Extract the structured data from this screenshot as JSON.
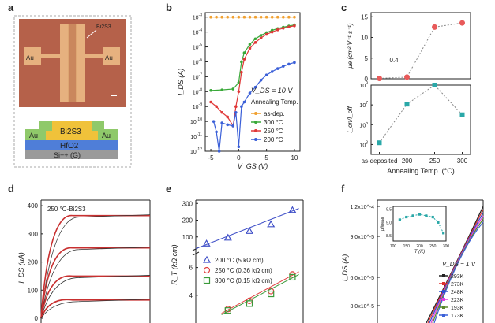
{
  "panels": {
    "a": {
      "label": "a",
      "device_labels": {
        "material": "Bi2S3",
        "au_left": "Au",
        "au_right": "Au"
      },
      "stack": {
        "au_l": "Au",
        "au_r": "Au",
        "channel": "Bi2S3",
        "dielectric": "HfO2",
        "substrate": "Si++ (G)"
      },
      "colors": {
        "device_bg": "#b5614a",
        "pad": "#e6b17f",
        "green": "#8fc96a",
        "yellow": "#f0c23a",
        "blue": "#4f7ed8",
        "gray": "#9a9a9a"
      }
    },
    "b": {
      "label": "b",
      "annotation": "V_DS = 10 V",
      "legend_title": "Annealing Temp."
    },
    "c": {
      "label": "c",
      "note": "0.4"
    },
    "d": {
      "label": "d",
      "annotation": "250 °C-Bi2S3"
    },
    "e": {
      "label": "e"
    },
    "f": {
      "label": "f",
      "annotation": "V_DS = 1 V"
    }
  },
  "chart_data": [
    {
      "id": "b",
      "type": "line",
      "xlabel": "V_GS (V)",
      "ylabel": "I_DS (A)",
      "yscale": "log",
      "xlim": [
        -6,
        11
      ],
      "ylim": [
        1e-12,
        0.002
      ],
      "xticks": [
        "-5",
        "0",
        "5",
        "10"
      ],
      "yticks": [
        "10^-12",
        "10^-11",
        "10^-10",
        "10^-9",
        "10^-8",
        "10^-7",
        "10^-6",
        "10^-5",
        "10^-4",
        "10^-3"
      ],
      "series": [
        {
          "name": "as-dep.",
          "color": "#f0a030",
          "x": [
            -5,
            -4,
            -3,
            -2,
            -1,
            0,
            1,
            2,
            3,
            4,
            5,
            6,
            7,
            8,
            9,
            10
          ],
          "y": [
            0.001,
            0.001,
            0.001,
            0.001,
            0.001,
            0.001,
            0.001,
            0.001,
            0.001,
            0.001,
            0.001,
            0.001,
            0.001,
            0.001,
            0.001,
            0.001
          ]
        },
        {
          "name": "300 °C",
          "color": "#38a838",
          "x": [
            -5,
            -3,
            -1,
            0,
            0.5,
            1,
            2,
            3,
            4,
            5,
            6,
            7,
            8,
            9,
            10
          ],
          "y": [
            1.2e-08,
            1.3e-08,
            1.5e-08,
            4e-08,
            1e-06,
            4e-06,
            1.5e-05,
            3.5e-05,
            6e-05,
            9e-05,
            0.00013,
            0.00017,
            0.00021,
            0.00025,
            0.0003
          ]
        },
        {
          "name": "250 °C",
          "color": "#e03838",
          "x": [
            -5,
            -4,
            -3,
            -2,
            -1,
            -0.5,
            0,
            0.5,
            1,
            2,
            3,
            4,
            5,
            6,
            7,
            8,
            9,
            10
          ],
          "y": [
            2e-09,
            1e-09,
            4e-10,
            2e-10,
            5e-11,
            1e-09,
            1e-08,
            2e-07,
            1.5e-06,
            8e-06,
            2e-05,
            4e-05,
            7e-05,
            0.0001,
            0.00014,
            0.00018,
            0.00022,
            0.00026
          ]
        },
        {
          "name": "200 °C",
          "color": "#3a5fd8",
          "x": [
            -4.5,
            -4,
            -3.5,
            -3,
            -2,
            -1,
            -0.5,
            0,
            0.5,
            1,
            2,
            3,
            4,
            5,
            6,
            7,
            8,
            9,
            10
          ],
          "y": [
            1e-10,
            2e-11,
            1e-12,
            8e-11,
            6e-11,
            5e-11,
            4e-10,
            2e-12,
            1e-09,
            2e-09,
            8e-09,
            2e-08,
            6e-08,
            1.3e-07,
            2.2e-07,
            3.5e-07,
            5e-07,
            7e-07,
            9e-07
          ]
        }
      ]
    },
    {
      "id": "c-top",
      "type": "scatter",
      "xlabel": "",
      "ylabel": "μe (cm² V⁻¹ s⁻¹)",
      "categories": [
        "as-deposited",
        "200",
        "250",
        "300"
      ],
      "ylim": [
        0,
        16
      ],
      "yticks": [
        "0",
        "5",
        "10",
        "15"
      ],
      "series": [
        {
          "name": "mobility",
          "color": "#e85a5a",
          "values": [
            0.1,
            0.4,
            12.5,
            13.5
          ]
        }
      ]
    },
    {
      "id": "c-bottom",
      "type": "scatter",
      "xlabel": "Annealing Temp. (°C)",
      "ylabel": "I_on/I_off",
      "yscale": "log",
      "categories": [
        "as-deposited",
        "200",
        "250",
        "300"
      ],
      "ylim": [
        100.0,
        1000000000.0
      ],
      "yticks": [
        "10^3",
        "10^5",
        "10^7",
        "10^9"
      ],
      "series": [
        {
          "name": "on/off ratio",
          "color": "#2aa8a8",
          "values": [
            1500.0,
            12000000.0,
            1000000000.0,
            1000000.0
          ]
        }
      ]
    },
    {
      "id": "d",
      "type": "line",
      "ylabel": "I_DS (uA)",
      "ylim": [
        0,
        420
      ],
      "yticks": [
        "0",
        "100",
        "200",
        "300",
        "400"
      ],
      "series": [
        {
          "name": "",
          "color": "#c83030",
          "values": [
            365
          ]
        },
        {
          "name": "",
          "color": "#c83030",
          "values": [
            250
          ]
        },
        {
          "name": "",
          "color": "#c83030",
          "values": [
            150
          ]
        },
        {
          "name": "",
          "color": "#c83030",
          "values": [
            65
          ]
        }
      ]
    },
    {
      "id": "e",
      "type": "scatter",
      "ylabel": "R_T (kΩ cm)",
      "yticks_top": [
        "100",
        "200",
        "300"
      ],
      "yticks_bottom": [
        "4",
        "6"
      ],
      "series": [
        {
          "name": "200 °C (5 kΩ cm)",
          "color": "#4050c8",
          "marker": "triangle",
          "x": [
            1,
            2,
            3,
            4,
            5
          ],
          "y": [
            60,
            95,
            135,
            175,
            260
          ]
        },
        {
          "name": "250 °C (0.36 kΩ cm)",
          "color": "#e04040",
          "marker": "circle",
          "x": [
            2,
            3,
            4,
            5
          ],
          "y": [
            3.0,
            3.6,
            4.3,
            5.5
          ]
        },
        {
          "name": "300 °C (0.15 kΩ cm)",
          "color": "#3a9a3a",
          "marker": "square",
          "x": [
            2,
            3,
            4,
            5
          ],
          "y": [
            2.9,
            3.4,
            4.1,
            5.3
          ]
        }
      ]
    },
    {
      "id": "f",
      "type": "line",
      "ylabel": "I_DS (A)",
      "yticks": [
        "3.0x10^-5",
        "6.0x10^-5",
        "9.0x10^-5",
        "1.2x10^-4"
      ],
      "series": [
        {
          "name": "293K",
          "color": "#222222"
        },
        {
          "name": "273K",
          "color": "#e03030"
        },
        {
          "name": "248K",
          "color": "#3050d0"
        },
        {
          "name": "223K",
          "color": "#e040e0"
        },
        {
          "name": "193K",
          "color": "#5a8a2a"
        },
        {
          "name": "173K",
          "color": "#3a60d8"
        }
      ],
      "inset": {
        "xlabel": "T (K)",
        "ylabel": "μlinear",
        "xticks": [
          "100",
          "150",
          "200",
          "250",
          "300"
        ],
        "yticks": [
          "8.5",
          "9.0",
          "9.5"
        ],
        "x": [
          125,
          150,
          175,
          200,
          225,
          250,
          270,
          290
        ],
        "y": [
          9.1,
          9.2,
          9.25,
          9.3,
          9.25,
          9.2,
          9.0,
          8.6
        ],
        "color": "#2aa8a8"
      }
    }
  ]
}
